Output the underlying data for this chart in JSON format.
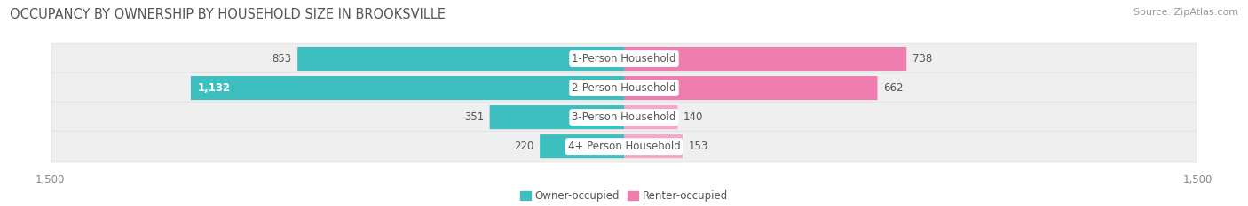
{
  "title": "OCCUPANCY BY OWNERSHIP BY HOUSEHOLD SIZE IN BROOKSVILLE",
  "source": "Source: ZipAtlas.com",
  "categories": [
    "1-Person Household",
    "2-Person Household",
    "3-Person Household",
    "4+ Person Household"
  ],
  "owner_values": [
    853,
    1132,
    351,
    220
  ],
  "renter_values": [
    738,
    662,
    140,
    153
  ],
  "owner_color": "#3DBFBF",
  "renter_color": "#F07DB0",
  "renter_color_light": "#F5A8C8",
  "row_bg_color": "#EFEFEF",
  "row_bg_border": "#E0E0E0",
  "xlim": 1500,
  "title_fontsize": 10.5,
  "tick_fontsize": 8.5,
  "cat_fontsize": 8.5,
  "value_fontsize": 8.5,
  "legend_fontsize": 8.5,
  "source_fontsize": 8,
  "inside_label_threshold": 1000
}
